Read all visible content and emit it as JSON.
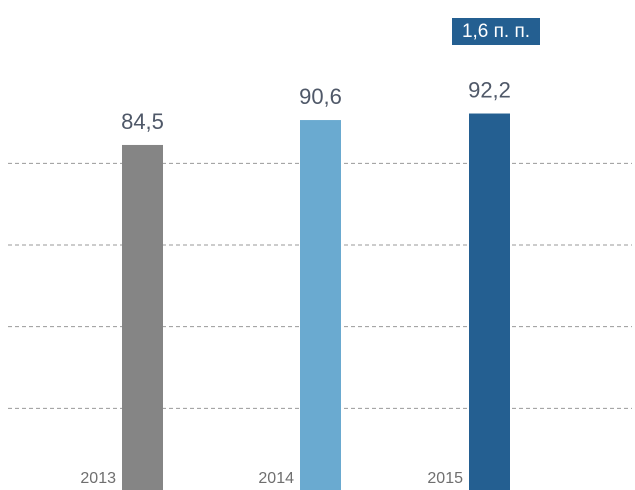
{
  "chart_data": {
    "type": "bar",
    "categories": [
      "2013",
      "2014",
      "2015"
    ],
    "values": [
      84.5,
      90.6,
      92.2
    ],
    "value_labels": [
      "84,5",
      "90,6",
      "92,2"
    ],
    "colors": [
      "#858585",
      "#6aaad0",
      "#245f91"
    ],
    "ylim": [
      0,
      120
    ],
    "yticks": [
      20,
      40,
      60,
      80
    ],
    "grid": true,
    "annotation": "1,6 п. п."
  }
}
